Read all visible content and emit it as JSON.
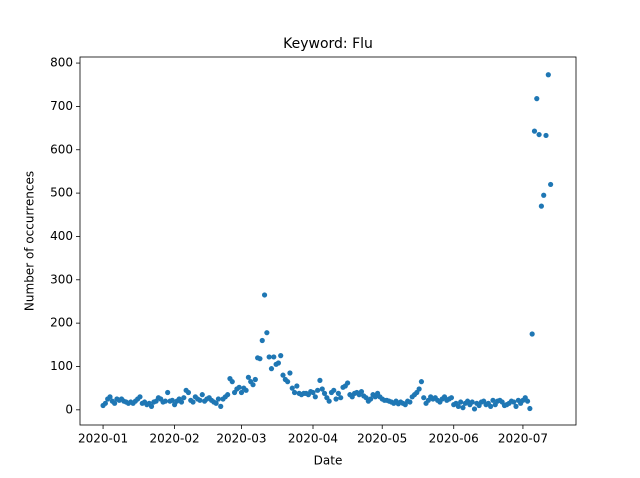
{
  "chart_data": {
    "type": "scatter",
    "title": "Keyword: Flu",
    "x_label": "Date",
    "y_label": "Number of occurrences",
    "series": [
      {
        "color": "#1f77b4",
        "x": [
          0,
          1,
          2,
          3,
          4,
          5,
          6,
          7,
          8,
          9,
          10,
          11,
          12,
          13,
          14,
          15,
          16,
          17,
          18,
          19,
          20,
          21,
          22,
          23,
          24,
          25,
          26,
          27,
          28,
          29,
          30,
          31,
          32,
          33,
          34,
          35,
          36,
          37,
          38,
          39,
          40,
          41,
          42,
          43,
          44,
          45,
          46,
          47,
          48,
          49,
          50,
          51,
          52,
          53,
          54,
          55,
          56,
          57,
          58,
          59,
          60,
          61,
          62,
          63,
          64,
          65,
          66,
          67,
          68,
          69,
          70,
          71,
          72,
          73,
          74,
          75,
          76,
          77,
          78,
          79,
          80,
          81,
          82,
          83,
          84,
          85,
          86,
          87,
          88,
          89,
          90,
          91,
          92,
          93,
          94,
          95,
          96,
          97,
          98,
          99,
          100,
          101,
          102,
          103,
          104,
          105,
          106,
          107,
          108,
          109,
          110,
          111,
          112,
          113,
          114,
          115,
          116,
          117,
          118,
          119,
          120,
          121,
          122,
          123,
          124,
          125,
          126,
          127,
          128,
          129,
          130,
          131,
          132,
          133,
          134,
          135,
          136,
          137,
          138,
          139,
          140,
          141,
          142,
          143,
          144,
          145,
          146,
          147,
          148,
          149,
          150,
          151,
          152,
          153,
          154,
          155,
          156,
          157,
          158,
          159,
          160,
          161,
          162,
          163,
          164,
          165,
          166,
          167,
          168,
          169,
          170,
          171,
          172,
          173,
          174,
          175,
          176,
          177,
          178,
          179,
          180,
          181,
          182,
          183,
          184,
          185,
          186,
          187,
          188,
          189,
          190,
          191,
          192,
          193,
          194
        ],
        "values": [
          10,
          15,
          25,
          30,
          20,
          15,
          25,
          22,
          25,
          20,
          18,
          15,
          18,
          15,
          20,
          25,
          30,
          15,
          18,
          12,
          15,
          8,
          18,
          20,
          28,
          25,
          18,
          20,
          40,
          20,
          22,
          12,
          20,
          25,
          18,
          28,
          45,
          40,
          22,
          18,
          30,
          25,
          22,
          35,
          20,
          25,
          28,
          22,
          18,
          15,
          25,
          8,
          25,
          30,
          35,
          72,
          65,
          40,
          48,
          52,
          40,
          50,
          45,
          75,
          65,
          58,
          70,
          120,
          118,
          160,
          265,
          178,
          122,
          95,
          122,
          105,
          108,
          125,
          80,
          70,
          65,
          85,
          50,
          40,
          55,
          38,
          35,
          38,
          38,
          35,
          42,
          40,
          30,
          45,
          68,
          48,
          38,
          28,
          20,
          40,
          45,
          25,
          38,
          28,
          52,
          55,
          62,
          35,
          30,
          38,
          40,
          35,
          42,
          32,
          28,
          20,
          25,
          35,
          30,
          38,
          30,
          25,
          22,
          22,
          20,
          18,
          15,
          20,
          14,
          18,
          15,
          12,
          20,
          18,
          30,
          35,
          40,
          48,
          65,
          28,
          15,
          22,
          30,
          25,
          28,
          22,
          18,
          25,
          30,
          22,
          25,
          28,
          12,
          15,
          8,
          18,
          5,
          15,
          20,
          12,
          18,
          2,
          15,
          10,
          18,
          20,
          12,
          15,
          8,
          22,
          12,
          20,
          22,
          18,
          10,
          12,
          15,
          20,
          18,
          8,
          22,
          15,
          22,
          28,
          20,
          3,
          175,
          643,
          718,
          635,
          470,
          495,
          633,
          773,
          520
        ]
      }
    ],
    "xlim": [
      -10,
      205
    ],
    "xticks": [
      {
        "value": 0,
        "label": "2020-01"
      },
      {
        "value": 31,
        "label": "2020-02"
      },
      {
        "value": 60,
        "label": "2020-03"
      },
      {
        "value": 91,
        "label": "2020-04"
      },
      {
        "value": 121,
        "label": "2020-05"
      },
      {
        "value": 152,
        "label": "2020-06"
      },
      {
        "value": 182,
        "label": "2020-07"
      }
    ],
    "ylim": [
      -35,
      814
    ],
    "yticks": [
      0,
      100,
      200,
      300,
      400,
      500,
      600,
      700,
      800
    ],
    "grid": false
  }
}
